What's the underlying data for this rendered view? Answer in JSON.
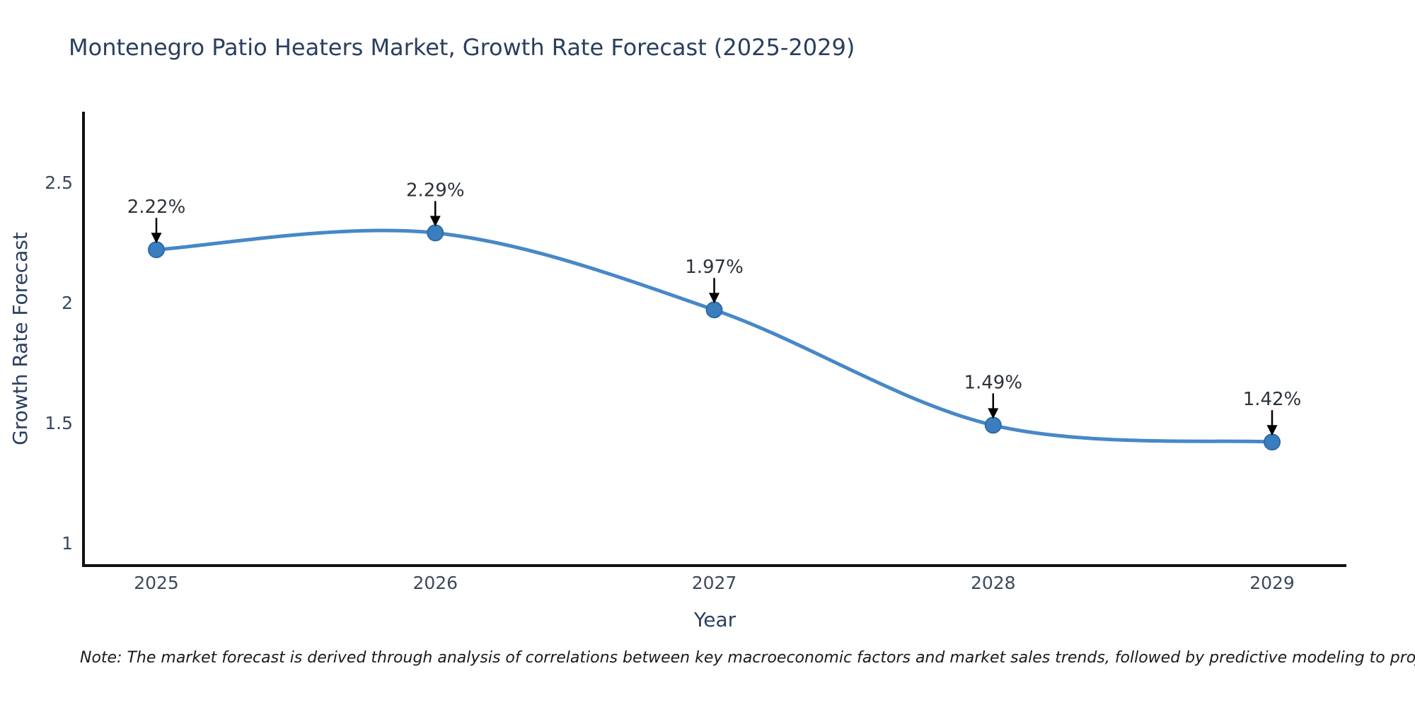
{
  "chart": {
    "title": "Montenegro Patio Heaters Market, Growth Rate Forecast (2025-2029)"
  },
  "chart_data": {
    "type": "line",
    "x": [
      2025,
      2026,
      2027,
      2028,
      2029
    ],
    "series": [
      {
        "name": "Growth Rate Forecast",
        "values": [
          2.22,
          2.29,
          1.97,
          1.49,
          1.42
        ]
      }
    ],
    "point_labels": [
      "2.22%",
      "2.29%",
      "1.97%",
      "1.49%",
      "1.42%"
    ],
    "title": "Montenegro Patio Heaters Market, Growth Rate Forecast (2025-2029)",
    "xlabel": "Year",
    "ylabel": "Growth Rate Forecast",
    "yticks": [
      2.5,
      2,
      1.5,
      1
    ],
    "ytick_labels": [
      "2.5",
      "2",
      "1.5",
      "1"
    ],
    "xtick_labels": [
      "2025",
      "2026",
      "2027",
      "2028",
      "2029"
    ],
    "ylim": [
      0.91,
      2.79
    ],
    "grid": false,
    "legend": false,
    "line_shape": "spline",
    "colors": {
      "line": "#4788c7",
      "marker_fill": "#3a7ebf",
      "marker_edge": "#2f6aa5",
      "arrow": "#000000",
      "axis_line": "#111111",
      "title_text": "#2a3f5f",
      "tick_text": "#3b4a5c",
      "label_text": "#2d333b",
      "background": "#ffffff"
    }
  },
  "note": {
    "text": "Note: The market forecast is derived through analysis of correlations between key macroeconomic factors and market sales trends, followed by predictive modeling to project future sales"
  }
}
